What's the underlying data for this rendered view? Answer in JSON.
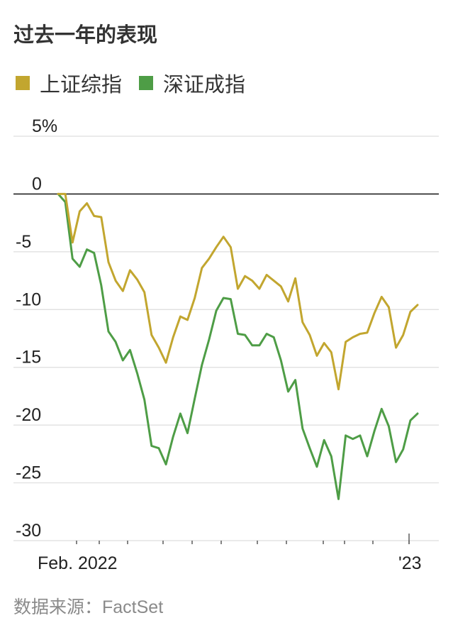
{
  "title": "过去一年的表现",
  "source": "数据来源：FactSet",
  "colors": {
    "sse": "#C2A62F",
    "szse": "#4E9D46",
    "zero_line": "#222222",
    "grid": "#dddddd"
  },
  "chart_data": {
    "type": "line",
    "title": "过去一年的表现",
    "ylim": [
      -31,
      6
    ],
    "y_ticks": [
      5,
      0,
      -5,
      -10,
      -15,
      -20,
      -25,
      -30
    ],
    "y_tick_labels": [
      "5%",
      "0",
      "-5",
      "-10",
      "-15",
      "-20",
      "-25",
      "-30"
    ],
    "x_labels": [
      "Feb. 2022",
      "'23"
    ],
    "grid": true,
    "legend_placement": "top-left",
    "series": [
      {
        "name": "上证综指",
        "color": "#C2A62F",
        "values": [
          0,
          0,
          -4.2,
          -1.5,
          -0.8,
          -1.9,
          -2,
          -5.9,
          -7.5,
          -8.4,
          -6.6,
          -7.4,
          -8.5,
          -12.2,
          -13.3,
          -14.6,
          -12.4,
          -10.6,
          -10.9,
          -9,
          -6.4,
          -5.6,
          -4.6,
          -3.7,
          -4.6,
          -8.2,
          -7.1,
          -7.5,
          -8.2,
          -7,
          -7.5,
          -8,
          -9.3,
          -7.3,
          -11.1,
          -12.2,
          -14,
          -12.9,
          -13.7,
          -16.9,
          -12.8,
          -12.4,
          -12.1,
          -12,
          -10.3,
          -8.9,
          -9.8,
          -13.3,
          -12.2,
          -10.2,
          -9.6
        ]
      },
      {
        "name": "深证成指",
        "color": "#4E9D46",
        "values": [
          0,
          -0.7,
          -5.6,
          -6.3,
          -4.8,
          -5.1,
          -7.9,
          -11.9,
          -12.8,
          -14.4,
          -13.5,
          -15.5,
          -17.8,
          -21.8,
          -22,
          -23.4,
          -21,
          -19,
          -20.7,
          -17.7,
          -14.8,
          -12.6,
          -10.1,
          -9,
          -9.1,
          -12.1,
          -12.2,
          -13.1,
          -13.1,
          -12.1,
          -12.4,
          -14.4,
          -17.1,
          -16.1,
          -20.3,
          -22,
          -23.6,
          -21.3,
          -22.7,
          -26.4,
          -20.9,
          -21.2,
          -20.9,
          -22.7,
          -20.5,
          -18.6,
          -20.1,
          -23.2,
          -22.1,
          -19.6,
          -19
        ]
      }
    ]
  }
}
